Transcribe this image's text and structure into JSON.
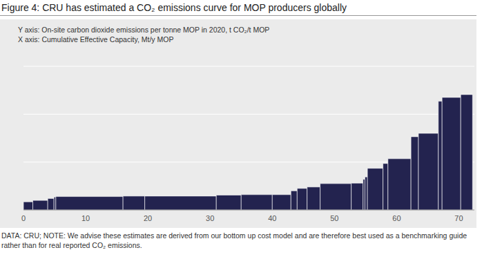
{
  "chart_data": {
    "type": "bar",
    "title": "Figure 4: CRU has estimated a CO₂ emissions curve for MOP producers globally",
    "y_label": "Y axis: On-site carbon dioxide emissions per tonne MOP in 2020, t CO₂/t MOP",
    "x_label": "X axis: Cumulative Effective Capacity, Mt/y MOP",
    "annotations": [
      "DATA: CRU; NOTE: We advise these estimates are derived from our bottom up cost model and are therefore best used as a benchmarking guide rather than for real reported CO₂ emissions."
    ],
    "bins": [
      0,
      1.5,
      3.9,
      4.9,
      5.2,
      16,
      19.5,
      31,
      35,
      40,
      43,
      44,
      45.6,
      47.7,
      52.7,
      54.6,
      54.9,
      55.3,
      57.8,
      58.6,
      62.3,
      63.5,
      66.7,
      67.3,
      70.3,
      72.2
    ],
    "values": [
      0.017,
      0.02,
      0.024,
      0.027,
      0.028,
      0.029,
      0.029,
      0.031,
      0.032,
      0.032,
      0.04,
      0.045,
      0.048,
      0.055,
      0.056,
      0.064,
      0.069,
      0.087,
      0.097,
      0.107,
      0.153,
      0.16,
      0.227,
      0.235,
      0.241
    ],
    "color": "#23234f",
    "xlim": [
      0,
      72.5
    ],
    "xticks": [
      0,
      10,
      20,
      30,
      40,
      50,
      60,
      70
    ],
    "ylim": [
      0,
      0.3
    ],
    "yticks": [
      0,
      0.1,
      0.2,
      0.3
    ],
    "grid": true,
    "tick_labels": "x"
  }
}
